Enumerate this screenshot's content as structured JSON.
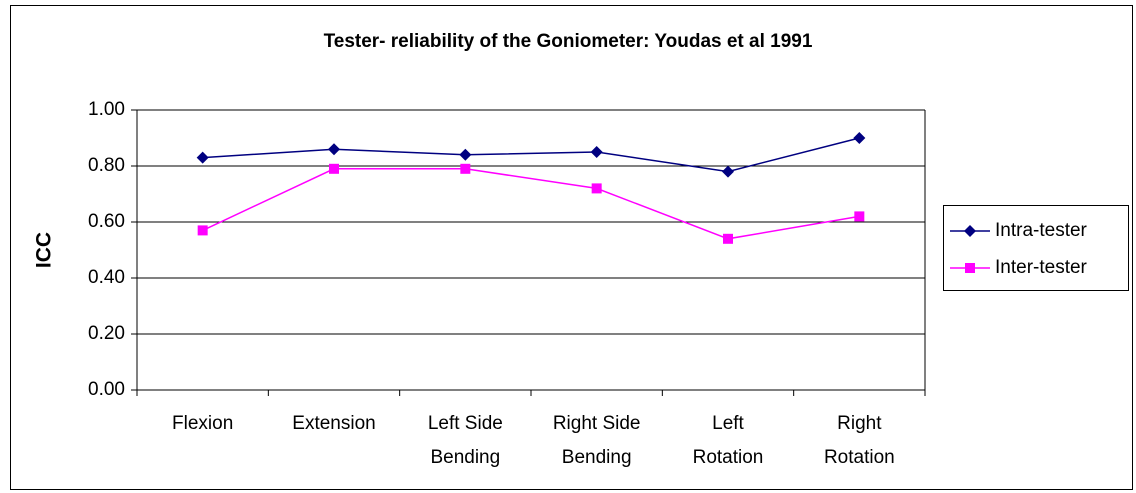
{
  "chart_data": {
    "type": "line",
    "title": "Tester- reliability of the Goniometer: Youdas et al 1991",
    "y_label": "ICC",
    "categories": [
      [
        "Flexion"
      ],
      [
        "Extension"
      ],
      [
        "Left Side",
        "Bending"
      ],
      [
        "Right Side",
        "Bending"
      ],
      [
        "Left",
        "Rotation"
      ],
      [
        "Right",
        "Rotation"
      ]
    ],
    "series": [
      {
        "name": "Intra-tester",
        "color": "#000080",
        "marker": "diamond",
        "values": [
          0.83,
          0.86,
          0.84,
          0.85,
          0.78,
          0.9
        ]
      },
      {
        "name": "Inter-tester",
        "color": "#ff00ff",
        "marker": "square",
        "values": [
          0.57,
          0.79,
          0.79,
          0.72,
          0.54,
          0.62
        ]
      }
    ],
    "ylim": [
      0,
      1
    ],
    "yticks": [
      {
        "value": 0,
        "label": "0.00"
      },
      {
        "value": 0.2,
        "label": "0.20"
      },
      {
        "value": 0.4,
        "label": "0.40"
      },
      {
        "value": 0.6,
        "label": "0.60"
      },
      {
        "value": 0.8,
        "label": "0.80"
      },
      {
        "value": 1,
        "label": "1.00"
      }
    ],
    "grid": true,
    "legend": "right"
  }
}
